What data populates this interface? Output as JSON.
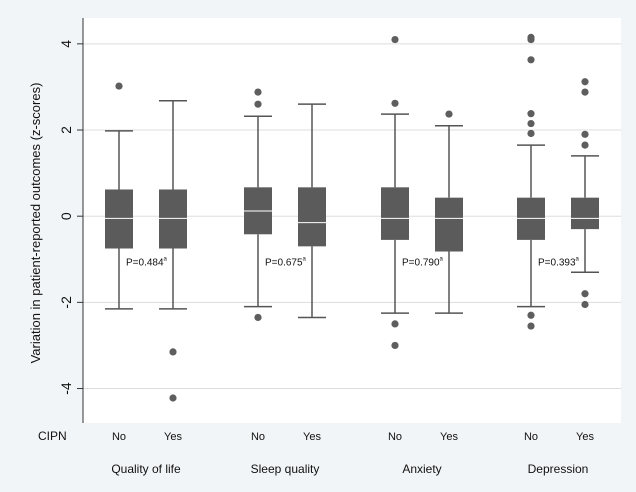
{
  "chart_data": {
    "type": "box",
    "ylabel": "Variation in patient-reported outcomes (z-scores)",
    "ylim": [
      -4.8,
      4.6
    ],
    "yticks": [
      4,
      2,
      0,
      -2,
      -4
    ],
    "grid": true,
    "x_prefix_label": "CIPN",
    "colors": {
      "box": "#5b5b5b",
      "whisker": "#555555",
      "median": "#ffffff",
      "outlier": "#5e5e5e",
      "grid": "#dddddd",
      "plot_bg": "#ffffff"
    },
    "groups": [
      {
        "label": "Quality of life",
        "p_value": "P=0.484",
        "p_superscript": "a",
        "boxes": [
          {
            "label": "No",
            "whisker_low": -2.15,
            "q1": -0.75,
            "median": -0.05,
            "q3": 0.62,
            "whisker_high": 1.98,
            "outliers": [
              3.02
            ]
          },
          {
            "label": "Yes",
            "whisker_low": -2.15,
            "q1": -0.75,
            "median": -0.05,
            "q3": 0.62,
            "whisker_high": 2.68,
            "outliers": [
              -3.15,
              -4.22
            ]
          }
        ]
      },
      {
        "label": "Sleep quality",
        "p_value": "P=0.675",
        "p_superscript": "a",
        "boxes": [
          {
            "label": "No",
            "whisker_low": -2.1,
            "q1": -0.42,
            "median": 0.12,
            "q3": 0.67,
            "whisker_high": 2.32,
            "outliers": [
              2.88,
              2.6,
              -2.35
            ]
          },
          {
            "label": "Yes",
            "whisker_low": -2.35,
            "q1": -0.7,
            "median": -0.15,
            "q3": 0.67,
            "whisker_high": 2.6,
            "outliers": []
          }
        ]
      },
      {
        "label": "Anxiety",
        "p_value": "P=0.790",
        "p_superscript": "a",
        "boxes": [
          {
            "label": "No",
            "whisker_low": -2.25,
            "q1": -0.55,
            "median": -0.05,
            "q3": 0.67,
            "whisker_high": 2.37,
            "outliers": [
              4.1,
              2.62,
              -2.5,
              -3.0
            ]
          },
          {
            "label": "Yes",
            "whisker_low": -2.25,
            "q1": -0.82,
            "median": -0.05,
            "q3": 0.43,
            "whisker_high": 2.1,
            "outliers": [
              2.37
            ]
          }
        ]
      },
      {
        "label": "Depression",
        "p_value": "P=0.393",
        "p_superscript": "a",
        "boxes": [
          {
            "label": "No",
            "whisker_low": -2.1,
            "q1": -0.55,
            "median": -0.05,
            "q3": 0.43,
            "whisker_high": 1.65,
            "outliers": [
              4.15,
              4.1,
              3.63,
              2.38,
              2.15,
              1.92,
              -2.3,
              -2.55
            ]
          },
          {
            "label": "Yes",
            "whisker_low": -1.3,
            "q1": -0.3,
            "median": -0.05,
            "q3": 0.43,
            "whisker_high": 1.4,
            "outliers": [
              3.12,
              2.88,
              1.9,
              1.65,
              -1.8,
              -2.05
            ]
          }
        ]
      }
    ]
  }
}
